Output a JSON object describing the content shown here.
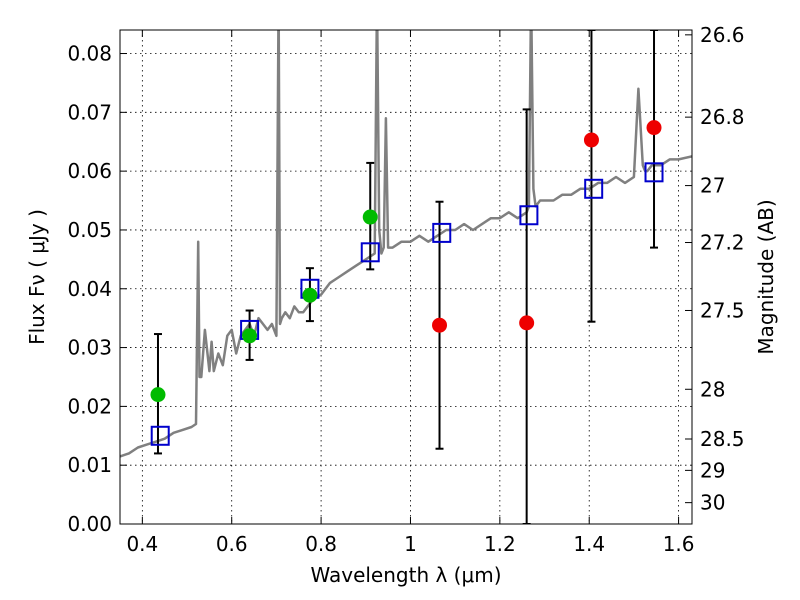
{
  "chart_data": {
    "type": "scatter",
    "xlabel": "Wavelength  λ (μm)",
    "ylabel": "Flux  Fν  ( μJy )",
    "y2label": "Magnitude (AB)",
    "xlim": [
      0.35,
      1.63
    ],
    "ylim": [
      0.0,
      0.084
    ],
    "x_ticks": [
      0.4,
      0.6,
      0.8,
      1.0,
      1.2,
      1.4,
      1.6
    ],
    "x_tick_labels": [
      "0.4",
      "0.6",
      "0.8",
      "1",
      "1.2",
      "1.4",
      "1.6"
    ],
    "y_ticks": [
      0.0,
      0.01,
      0.02,
      0.03,
      0.04,
      0.05,
      0.06,
      0.07,
      0.08
    ],
    "y_tick_labels": [
      "0.00",
      "0.01",
      "0.02",
      "0.03",
      "0.04",
      "0.05",
      "0.06",
      "0.07",
      "0.08"
    ],
    "mag_ticks": [
      "26.6",
      "26.8",
      "27",
      "27.2",
      "27.5",
      "28",
      "28.5",
      "29",
      "30"
    ],
    "grid": true,
    "series": [
      {
        "type": "line",
        "color": "#808080",
        "x": [
          0.35,
          0.37,
          0.39,
          0.41,
          0.43,
          0.45,
          0.47,
          0.49,
          0.51,
          0.52,
          0.525,
          0.528,
          0.532,
          0.54,
          0.55,
          0.555,
          0.56,
          0.57,
          0.58,
          0.59,
          0.6,
          0.61,
          0.62,
          0.63,
          0.64,
          0.65,
          0.66,
          0.67,
          0.68,
          0.69,
          0.7,
          0.705,
          0.708,
          0.712,
          0.72,
          0.73,
          0.74,
          0.75,
          0.76,
          0.78,
          0.8,
          0.82,
          0.84,
          0.86,
          0.88,
          0.9,
          0.92,
          0.925,
          0.93,
          0.935,
          0.94,
          0.945,
          0.95,
          0.96,
          0.98,
          1.0,
          1.02,
          1.04,
          1.06,
          1.08,
          1.1,
          1.12,
          1.14,
          1.16,
          1.18,
          1.2,
          1.22,
          1.24,
          1.26,
          1.265,
          1.27,
          1.275,
          1.28,
          1.29,
          1.3,
          1.32,
          1.34,
          1.36,
          1.38,
          1.4,
          1.42,
          1.44,
          1.46,
          1.48,
          1.5,
          1.51,
          1.52,
          1.525,
          1.53,
          1.54,
          1.56,
          1.58,
          1.6,
          1.63
        ],
        "y": [
          0.0115,
          0.012,
          0.013,
          0.0135,
          0.014,
          0.0145,
          0.0155,
          0.016,
          0.0165,
          0.017,
          0.048,
          0.025,
          0.025,
          0.033,
          0.026,
          0.031,
          0.026,
          0.029,
          0.027,
          0.032,
          0.033,
          0.029,
          0.032,
          0.033,
          0.034,
          0.032,
          0.035,
          0.034,
          0.033,
          0.034,
          0.032,
          0.09,
          0.034,
          0.035,
          0.036,
          0.035,
          0.037,
          0.036,
          0.036,
          0.038,
          0.039,
          0.041,
          0.042,
          0.043,
          0.044,
          0.045,
          0.046,
          0.09,
          0.05,
          0.046,
          0.047,
          0.069,
          0.047,
          0.047,
          0.048,
          0.048,
          0.049,
          0.048,
          0.049,
          0.05,
          0.05,
          0.051,
          0.05,
          0.051,
          0.052,
          0.052,
          0.053,
          0.052,
          0.053,
          0.054,
          0.09,
          0.057,
          0.054,
          0.055,
          0.055,
          0.055,
          0.056,
          0.056,
          0.057,
          0.057,
          0.058,
          0.058,
          0.059,
          0.058,
          0.059,
          0.074,
          0.061,
          0.06,
          0.06,
          0.061,
          0.061,
          0.062,
          0.062,
          0.0625
        ]
      },
      {
        "type": "scatter",
        "marker": "square",
        "color": "#0000cc",
        "x": [
          0.44,
          0.64,
          0.775,
          0.91,
          1.07,
          1.265,
          1.41,
          1.545
        ],
        "y": [
          0.015,
          0.033,
          0.04,
          0.0462,
          0.0495,
          0.0525,
          0.057,
          0.0598
        ]
      },
      {
        "type": "scatter",
        "marker": "circle",
        "color": "#00bb00",
        "x": [
          0.435,
          0.64,
          0.775,
          0.91
        ],
        "y": [
          0.022,
          0.032,
          0.0389,
          0.0522
        ],
        "yerr_low": [
          0.012,
          0.0279,
          0.0345,
          0.0433
        ],
        "yerr_high": [
          0.0323,
          0.0363,
          0.0435,
          0.0614
        ]
      },
      {
        "type": "scatter",
        "marker": "circle",
        "color": "#ee0000",
        "x": [
          1.065,
          1.26,
          1.405,
          1.545
        ],
        "y": [
          0.0338,
          0.0342,
          0.0653,
          0.0674
        ],
        "yerr_low": [
          0.0128,
          0.0,
          0.0344,
          0.047
        ],
        "yerr_high": [
          0.0548,
          0.0705,
          0.084,
          0.084
        ]
      }
    ]
  }
}
